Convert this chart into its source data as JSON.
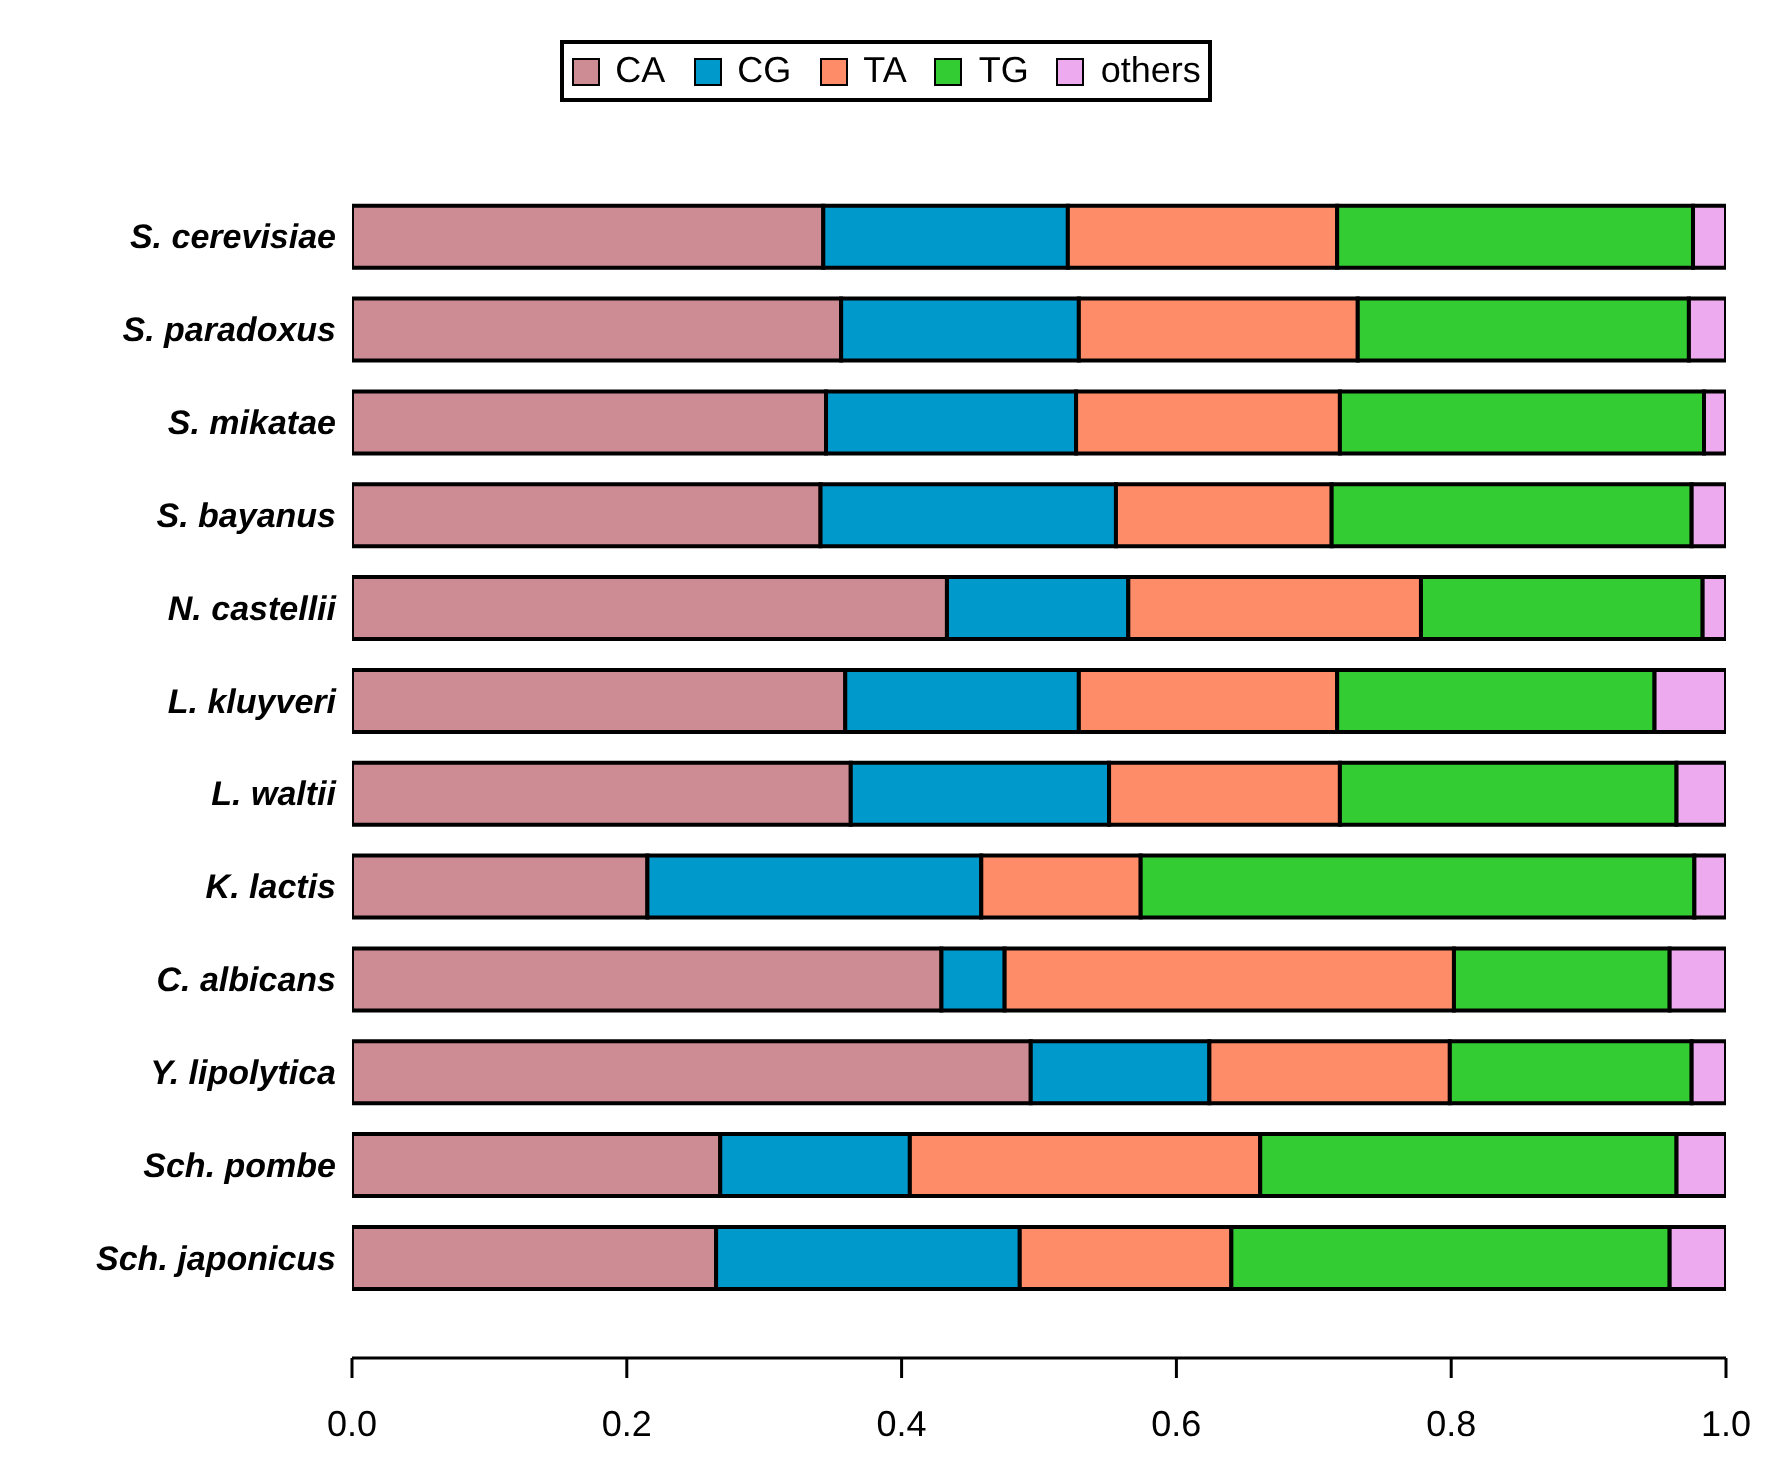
{
  "chart_data": {
    "type": "bar",
    "stacked": true,
    "orientation": "horizontal",
    "legend": "top",
    "categories": [
      "S. cerevisiae",
      "S. paradoxus",
      "S. mikatae",
      "S. bayanus",
      "N. castellii",
      "L. kluyveri",
      "L. waltii",
      "K. lactis",
      "C. albicans",
      "Y. lipolytica",
      "Sch. pombe",
      "Sch. japonicus"
    ],
    "series": [
      {
        "name": "CA",
        "color": "#cd8b93",
        "values": [
          0.343,
          0.356,
          0.345,
          0.341,
          0.433,
          0.359,
          0.363,
          0.215,
          0.429,
          0.494,
          0.268,
          0.265
        ]
      },
      {
        "name": "CG",
        "color": "#0099cc",
        "values": [
          0.178,
          0.173,
          0.182,
          0.215,
          0.132,
          0.17,
          0.188,
          0.243,
          0.046,
          0.13,
          0.138,
          0.221
        ]
      },
      {
        "name": "TA",
        "color": "#fe8c68",
        "values": [
          0.196,
          0.203,
          0.192,
          0.157,
          0.213,
          0.188,
          0.168,
          0.116,
          0.327,
          0.175,
          0.255,
          0.154
        ]
      },
      {
        "name": "TG",
        "color": "#33cc33",
        "values": [
          0.259,
          0.241,
          0.265,
          0.262,
          0.205,
          0.231,
          0.245,
          0.403,
          0.157,
          0.176,
          0.303,
          0.319
        ]
      },
      {
        "name": "others",
        "color": "#eeaaee",
        "values": [
          0.024,
          0.027,
          0.016,
          0.025,
          0.017,
          0.052,
          0.036,
          0.023,
          0.041,
          0.025,
          0.036,
          0.041
        ]
      }
    ],
    "xlim": [
      0,
      1
    ],
    "xticks": [
      {
        "value": 0,
        "label": "0.0"
      },
      0.2,
      0.4,
      0.6,
      0.8,
      {
        "value": 1,
        "label": "1.0"
      }
    ]
  }
}
